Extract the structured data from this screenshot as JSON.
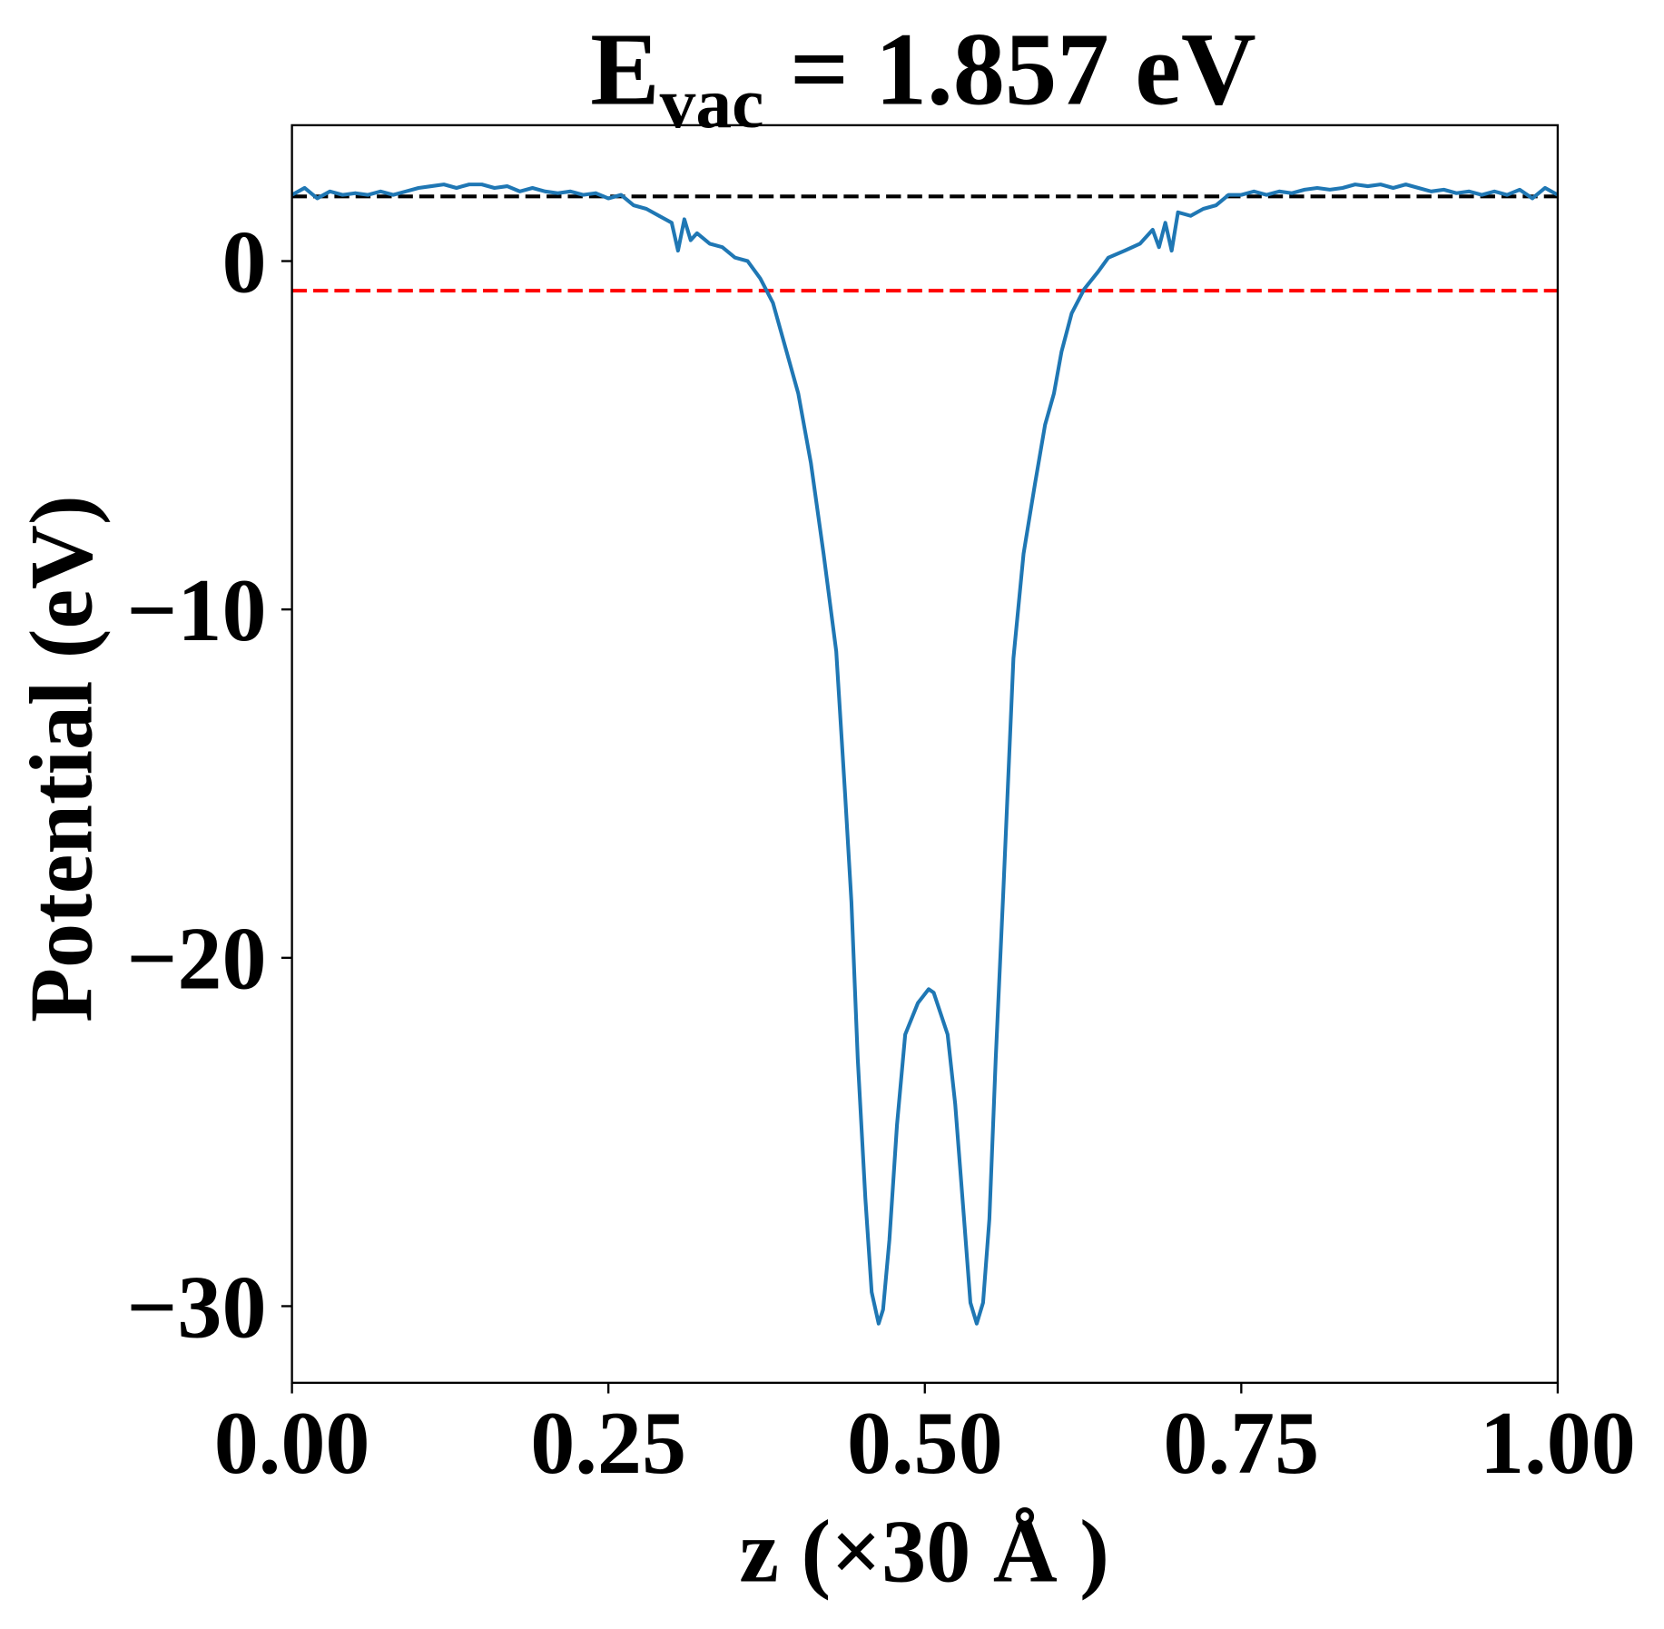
{
  "chart_data": {
    "type": "line",
    "title": {
      "main": "E",
      "subscript": "vac",
      "rest": " = 1.857 eV"
    },
    "x_label": "z (×30 Å )",
    "y_label": "Potential (eV)",
    "xlim": [
      0,
      1
    ],
    "ylim": [
      -32.2,
      3.9
    ],
    "xticks": [
      {
        "value": 0,
        "label": "0.00"
      },
      {
        "value": 0.25,
        "label": "0.25"
      },
      {
        "value": 0.5,
        "label": "0.50"
      },
      {
        "value": 0.75,
        "label": "0.75"
      },
      {
        "value": 1,
        "label": "1.00"
      }
    ],
    "yticks": [
      0,
      {
        "value": -10,
        "label": "−10"
      },
      {
        "value": -20,
        "label": "−20"
      },
      {
        "value": -30,
        "label": "−30"
      }
    ],
    "hlines": [
      {
        "value": 1.857,
        "color": "#000000"
      },
      {
        "value": -0.85,
        "color": "#ff0000"
      }
    ],
    "x": [
      0.0,
      0.01,
      0.02,
      0.03,
      0.04,
      0.05,
      0.06,
      0.07,
      0.08,
      0.09,
      0.1,
      0.11,
      0.12,
      0.13,
      0.14,
      0.15,
      0.16,
      0.17,
      0.18,
      0.19,
      0.2,
      0.21,
      0.22,
      0.23,
      0.24,
      0.25,
      0.26,
      0.27,
      0.28,
      0.29,
      0.3,
      0.305,
      0.31,
      0.315,
      0.32,
      0.33,
      0.34,
      0.35,
      0.36,
      0.37,
      0.38,
      0.39,
      0.4,
      0.41,
      0.42,
      0.43,
      0.437,
      0.442,
      0.447,
      0.453,
      0.458,
      0.4635,
      0.467,
      0.472,
      0.478,
      0.4845,
      0.4945,
      0.503,
      0.507,
      0.518,
      0.524,
      0.531,
      0.536,
      0.541,
      0.546,
      0.551,
      0.556,
      0.562,
      0.57,
      0.578,
      0.587,
      0.595,
      0.602,
      0.608,
      0.616,
      0.626,
      0.637,
      0.645,
      0.658,
      0.67,
      0.68,
      0.685,
      0.69,
      0.695,
      0.7,
      0.71,
      0.72,
      0.73,
      0.74,
      0.75,
      0.76,
      0.77,
      0.78,
      0.79,
      0.8,
      0.81,
      0.82,
      0.83,
      0.84,
      0.85,
      0.86,
      0.87,
      0.88,
      0.89,
      0.9,
      0.91,
      0.92,
      0.93,
      0.94,
      0.95,
      0.96,
      0.97,
      0.98,
      0.99,
      1.0
    ],
    "series": [
      {
        "color": "#1f77b4",
        "values": [
          1.9,
          2.1,
          1.8,
          2.0,
          1.9,
          1.95,
          1.9,
          2.0,
          1.9,
          2.0,
          2.1,
          2.15,
          2.2,
          2.1,
          2.2,
          2.2,
          2.1,
          2.15,
          2.0,
          2.1,
          2.0,
          1.95,
          2.0,
          1.9,
          1.95,
          1.8,
          1.9,
          1.6,
          1.5,
          1.3,
          1.1,
          0.3,
          1.2,
          0.6,
          0.8,
          0.5,
          0.4,
          0.1,
          0.0,
          -0.5,
          -1.2,
          -2.5,
          -3.8,
          -5.8,
          -8.4,
          -11.2,
          -15.3,
          -18.4,
          -22.9,
          -26.9,
          -29.6,
          -30.5,
          -30.1,
          -28.1,
          -24.8,
          -22.2,
          -21.3,
          -20.9,
          -21.0,
          -22.2,
          -24.2,
          -27.5,
          -29.9,
          -30.5,
          -29.9,
          -27.5,
          -22.9,
          -18.1,
          -11.4,
          -8.4,
          -6.4,
          -4.7,
          -3.8,
          -2.6,
          -1.5,
          -0.8,
          -0.3,
          0.1,
          0.3,
          0.5,
          0.9,
          0.4,
          1.1,
          0.3,
          1.4,
          1.3,
          1.5,
          1.6,
          1.9,
          1.9,
          2.0,
          1.9,
          2.0,
          1.95,
          2.05,
          2.1,
          2.05,
          2.1,
          2.2,
          2.15,
          2.2,
          2.1,
          2.2,
          2.1,
          2.0,
          2.05,
          1.95,
          2.0,
          1.9,
          2.0,
          1.9,
          2.05,
          1.8,
          2.1,
          1.9
        ]
      }
    ]
  }
}
